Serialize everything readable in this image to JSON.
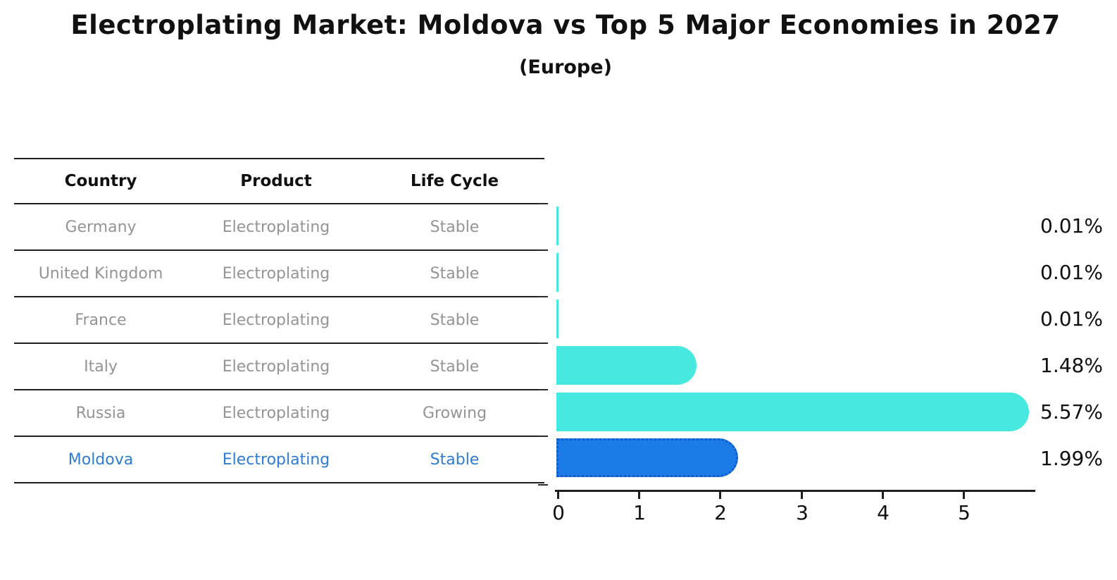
{
  "title": "Electroplating Market: Moldova vs Top 5 Major Economies in 2027",
  "subtitle": "(Europe)",
  "table": {
    "headers": [
      "Country",
      "Product",
      "Life Cycle"
    ],
    "rows": [
      {
        "country": "Germany",
        "product": "Electroplating",
        "life_cycle": "Stable",
        "highlight": false
      },
      {
        "country": "United Kingdom",
        "product": "Electroplating",
        "life_cycle": "Stable",
        "highlight": false
      },
      {
        "country": "France",
        "product": "Electroplating",
        "life_cycle": "Stable",
        "highlight": false
      },
      {
        "country": "Italy",
        "product": "Electroplating",
        "life_cycle": "Stable",
        "highlight": false
      },
      {
        "country": "Russia",
        "product": "Electroplating",
        "life_cycle": "Growing",
        "highlight": false
      },
      {
        "country": "Moldova",
        "product": "Electroplating",
        "life_cycle": "Stable",
        "highlight": true
      }
    ]
  },
  "chart_data": {
    "type": "bar",
    "orientation": "horizontal",
    "title": "Electroplating Market: Moldova vs Top 5 Major Economies in 2027",
    "subtitle": "(Europe)",
    "categories": [
      "Germany",
      "United Kingdom",
      "France",
      "Italy",
      "Russia",
      "Moldova"
    ],
    "values": [
      0.01,
      0.01,
      0.01,
      1.48,
      5.57,
      1.99
    ],
    "value_labels": [
      "0.01%",
      "0.01%",
      "0.01%",
      "1.48%",
      "5.57%",
      "1.99%"
    ],
    "unit": "percent",
    "xlabel": "",
    "ylabel": "",
    "xticks": [
      "0",
      "1",
      "2",
      "3",
      "4",
      "5"
    ],
    "xlim": [
      0,
      5.9
    ],
    "grid": false,
    "legend_position": "none",
    "bar_color": "#47E8E0",
    "highlight_color": "#1B7CE8",
    "highlight_border_color": "#1559C7",
    "highlight_index": 5
  },
  "colors": {
    "accent_cyan": "#47E8E0",
    "accent_blue": "#1B7CE8",
    "highlight_text": "#2E7CD4",
    "muted_text": "#949494",
    "axis_line": "#1F1F1F",
    "text": "#111111",
    "background": "#FFFFFF"
  }
}
